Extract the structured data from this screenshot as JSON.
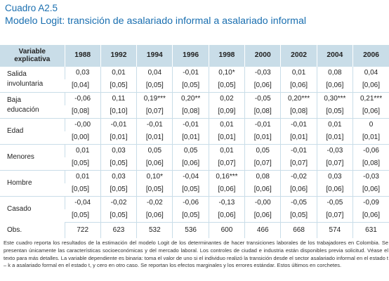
{
  "caption": {
    "label": "Cuadro A2.5",
    "title": "Modelo Logit: transición de asalariado informal a asalariado informal"
  },
  "table": {
    "header_label_line1": "Variable",
    "header_label_line2": "explicativa",
    "years": [
      "1988",
      "1992",
      "1994",
      "1996",
      "1998",
      "2000",
      "2002",
      "2004",
      "2006"
    ],
    "rows": [
      {
        "label_line1": "Salida",
        "label_line2": "involuntaria",
        "coef": [
          "0,03",
          "0,01",
          "0,04",
          "-0,01",
          "0,10*",
          "-0,03",
          "0,01",
          "0,08",
          "0,04"
        ],
        "se": [
          "[0,04]",
          "[0,05]",
          "[0,05]",
          "[0,05]",
          "[0,05]",
          "[0,06]",
          "[0,06]",
          "[0,06]",
          "[0,06]"
        ]
      },
      {
        "label_line1": "Baja",
        "label_line2": "educación",
        "coef": [
          "-0,06",
          "0,11",
          "0,19***",
          "0,20**",
          "0,02",
          "-0,05",
          "0,20***",
          "0,30***",
          "0,21***"
        ],
        "se": [
          "[0,08]",
          "[0,10]",
          "[0,07]",
          "[0,08]",
          "[0,09]",
          "[0,08]",
          "[0,08]",
          "[0,05]",
          "[0,06]"
        ]
      },
      {
        "label_line1": "Edad",
        "label_line2": "",
        "coef": [
          "-0,00",
          "-0,01",
          "-0,01",
          "-0,01",
          "0,01",
          "-0,01",
          "-0,01",
          "0,01",
          "0"
        ],
        "se": [
          "[0,00]",
          "[0,01]",
          "[0,01]",
          "[0,01]",
          "[0,01]",
          "[0,01]",
          "[0,01]",
          "[0,01]",
          "[0,01]"
        ]
      },
      {
        "label_line1": "Menores",
        "label_line2": "",
        "coef": [
          "0,01",
          "0,03",
          "0,05",
          "0,05",
          "0,01",
          "0,05",
          "-0,01",
          "-0,03",
          "-0,06"
        ],
        "se": [
          "[0,05]",
          "[0,05]",
          "[0,06]",
          "[0,06]",
          "[0,07]",
          "[0,07]",
          "[0,07]",
          "[0,07]",
          "[0,08]"
        ]
      },
      {
        "label_line1": "Hombre",
        "label_line2": "",
        "coef": [
          "0,01",
          "0,03",
          "0,10*",
          "-0,04",
          "0,16***",
          "0,08",
          "-0,02",
          "0,03",
          "-0,03"
        ],
        "se": [
          "[0,05]",
          "[0,05]",
          "[0,05]",
          "[0,05]",
          "[0,06]",
          "[0,06]",
          "[0,06]",
          "[0,06]",
          "[0,06]"
        ]
      },
      {
        "label_line1": "Casado",
        "label_line2": "",
        "coef": [
          "-0,04",
          "-0,02",
          "-0,02",
          "-0,06",
          "-0,13",
          "-0,00",
          "-0,05",
          "-0,05",
          "-0,09"
        ],
        "se": [
          "[0,05]",
          "[0,05]",
          "[0,06]",
          "[0,05]",
          "[0,06]",
          "[0,06]",
          "[0,05]",
          "[0,07]",
          "[0,06]"
        ]
      }
    ],
    "obs_label": "Obs.",
    "obs": [
      "722",
      "623",
      "532",
      "536",
      "600",
      "466",
      "668",
      "574",
      "631"
    ]
  },
  "notes": "Este cuadro reporta los resultados de la estimación del modelo Logit de los determinantes de hacer transiciones laborales de los trabajadores en Colombia. Se presentan únicamente las características socioeconómicas y del mercado laboral. Los controles de ciudad e industria están disponibles previa solicitud. Véase el texto para más detalles. La variable dependiente es binaria: toma el valor de uno si el individuo realizó la transición desde el sector asalariado informal en el estado t – k a asalariado formal en el estado t, y cero en otro caso. Se reportan los efectos marginales y los errores estándar. Estos últimos en corchetes."
}
